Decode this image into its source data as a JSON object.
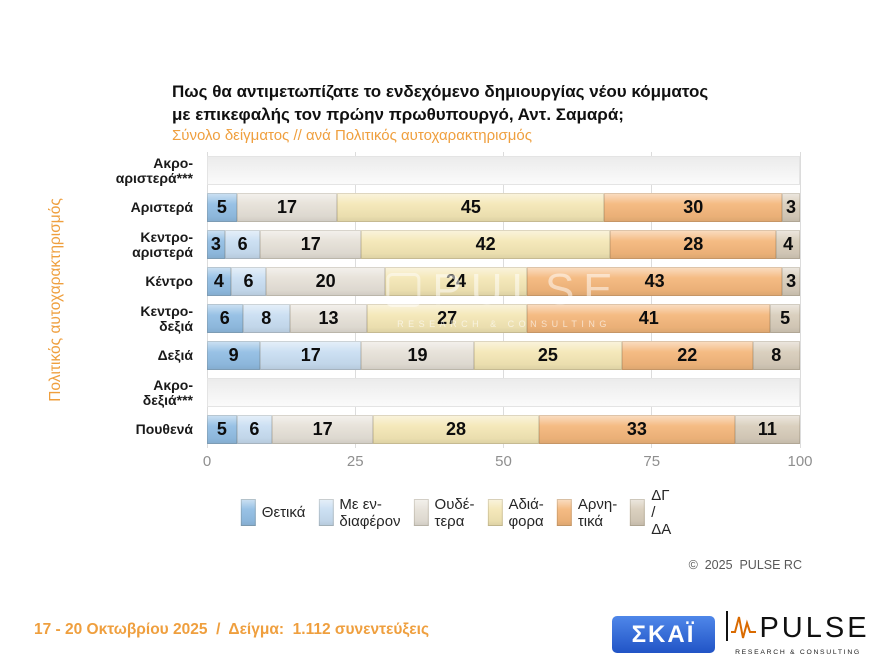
{
  "header": {
    "title_line1": "Πως θα αντιμετωπίζατε το ενδεχόμενο δημιουργίας νέου κόμματος",
    "title_line2": "με επικεφαλής τον πρώην πρωθυπουργό, Αντ. Σαμαρά;",
    "subtitle": "Σύνολο δείγματος // ανά Πολιτικός αυτοχαρακτηρισμός"
  },
  "axis": {
    "y_label": "Πολιτικός αυτοχαρακτηρισμός",
    "x_ticks": [
      0,
      25,
      50,
      75,
      100
    ]
  },
  "chart_data": {
    "type": "bar",
    "variant": "horizontal-stacked",
    "xlim": [
      0,
      100
    ],
    "grid": "vertical-major",
    "categories": [
      "Ακρο-\nαριστερά***",
      "Αριστερά",
      "Κεντρο-\nαριστερά",
      "Κέντρο",
      "Κεντρο-\nδεξιά",
      "Δεξιά",
      "Ακρο-\nδεξιά***",
      "Πουθενά"
    ],
    "series": [
      {
        "key": "positive",
        "name": "Θετικά",
        "color": "#92BEE4",
        "values": [
          null,
          5,
          3,
          4,
          6,
          9,
          null,
          5
        ]
      },
      {
        "key": "interested",
        "name": "Με ενδιαφέρον",
        "color": "#C9DEF2",
        "values": [
          null,
          0,
          6,
          6,
          8,
          17,
          null,
          6
        ]
      },
      {
        "key": "neutral",
        "name": "Ουδέτερα",
        "color": "#E6E1D8",
        "values": [
          null,
          17,
          17,
          20,
          13,
          19,
          null,
          17
        ]
      },
      {
        "key": "indifferent",
        "name": "Αδιάφορα",
        "color": "#F4E7B6",
        "values": [
          null,
          45,
          42,
          24,
          27,
          25,
          null,
          28
        ]
      },
      {
        "key": "negative",
        "name": "Αρνητικά",
        "color": "#F4B77C",
        "values": [
          null,
          30,
          28,
          43,
          41,
          22,
          null,
          33
        ]
      },
      {
        "key": "dk",
        "name": "ΔΓ / ΔΑ",
        "color": "#D8CDBB",
        "values": [
          null,
          3,
          4,
          3,
          5,
          8,
          null,
          11
        ]
      }
    ]
  },
  "legend": {
    "items": [
      {
        "key": "positive",
        "label": "Θετικά",
        "color": "#92BEE4"
      },
      {
        "key": "interested",
        "label": "Με εν-\nδιαφέρον",
        "color": "#C9DEF2"
      },
      {
        "key": "neutral",
        "label": "Ουδέ-\nτερα",
        "color": "#E6E1D8"
      },
      {
        "key": "indifferent",
        "label": "Αδιά-\nφορα",
        "color": "#F4E7B6"
      },
      {
        "key": "negative",
        "label": "Αρνη-\nτικά",
        "color": "#F4B77C"
      },
      {
        "key": "dk",
        "label": "ΔΓ /\nΔΑ",
        "color": "#D8CDBB"
      }
    ]
  },
  "watermark": {
    "word": "PULSE",
    "sub": "RESEARCH & CONSULTING"
  },
  "footer": {
    "copyright": "©  2025  PULSE RC",
    "fieldwork": "17 - 20 Οκτωβρίου 2025  /  Δείγμα:  1.112 συνεντεύξεις",
    "skai_text": "ΣΚΑΪ",
    "pulse_word": "PULSE",
    "pulse_sub": "RESEARCH & CONSULTING"
  },
  "colors": {
    "accent_orange": "#EF9F3E",
    "tick_text": "#8F8F8F",
    "skai_blue": "#2F63D4"
  }
}
